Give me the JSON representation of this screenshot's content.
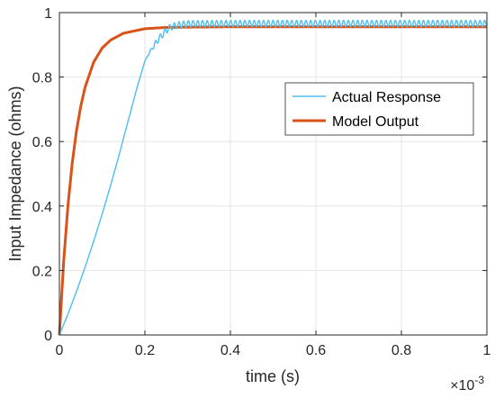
{
  "chart_data": {
    "type": "line",
    "xlabel": "time (s)",
    "ylabel": "Input Impedance (ohms)",
    "x_multiplier": "×10",
    "x_exponent": "-3",
    "xlim": [
      0,
      0.001
    ],
    "ylim": [
      0,
      1
    ],
    "x_tick_labels": [
      "0",
      "0.2",
      "0.4",
      "0.6",
      "0.8",
      "1"
    ],
    "x_tick_values": [
      0,
      0.0002,
      0.0004,
      0.0006,
      0.0008,
      0.001
    ],
    "y_tick_labels": [
      "0",
      "0.2",
      "0.4",
      "0.6",
      "0.8",
      "1"
    ],
    "y_tick_values": [
      0,
      0.2,
      0.4,
      0.6,
      0.8,
      1
    ],
    "grid": true,
    "legend_position": "right",
    "colors": {
      "actual": "#4DBEEE",
      "model": "#D95319",
      "axis": "#262626",
      "grid": "#e6e6e6"
    },
    "series": [
      {
        "name": "Actual Response",
        "color": "#4DBEEE",
        "x": [
          0,
          2e-05,
          4e-05,
          6e-05,
          8e-05,
          0.0001,
          0.00012,
          0.00014,
          0.00016,
          0.00018,
          0.0002,
          0.00021,
          0.00022,
          0.00023,
          0.00024,
          0.00025,
          0.00026,
          0.00028,
          0.0003,
          0.0004,
          0.0005,
          0.0006,
          0.0007,
          0.0008,
          0.0009,
          0.001
        ],
        "y": [
          0,
          0.065,
          0.135,
          0.21,
          0.29,
          0.375,
          0.465,
          0.56,
          0.66,
          0.76,
          0.85,
          0.875,
          0.895,
          0.915,
          0.93,
          0.945,
          0.955,
          0.962,
          0.965,
          0.966,
          0.966,
          0.966,
          0.966,
          0.966,
          0.966,
          0.966
        ],
        "ripple_start": 0.0002,
        "ripple_amplitude": 0.01,
        "ripple_period": 1.1e-05
      },
      {
        "name": "Model Output",
        "color": "#D95319",
        "x": [
          0,
          1e-05,
          2e-05,
          3e-05,
          4e-05,
          5e-05,
          6e-05,
          8e-05,
          0.0001,
          0.00012,
          0.00015,
          0.0002,
          0.00025,
          0.0003,
          0.0004,
          0.0005,
          0.0006,
          0.0007,
          0.0008,
          0.0009,
          0.001
        ],
        "y": [
          0,
          0.228,
          0.401,
          0.533,
          0.634,
          0.71,
          0.768,
          0.846,
          0.89,
          0.915,
          0.936,
          0.95,
          0.954,
          0.955,
          0.956,
          0.956,
          0.956,
          0.956,
          0.956,
          0.956,
          0.956
        ]
      }
    ]
  }
}
